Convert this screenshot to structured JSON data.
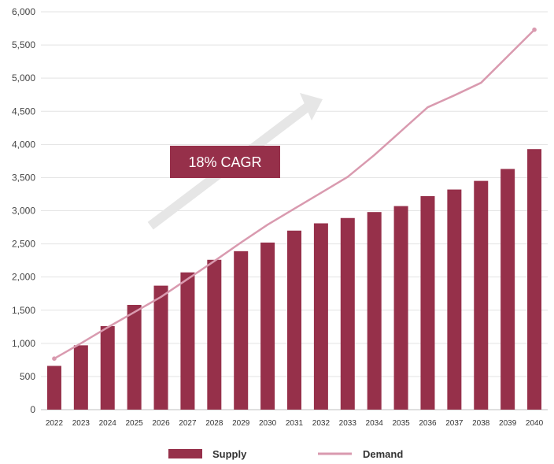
{
  "chart_data": {
    "type": "bar",
    "categories": [
      "2022",
      "2023",
      "2024",
      "2025",
      "2026",
      "2027",
      "2028",
      "2029",
      "2030",
      "2031",
      "2032",
      "2033",
      "2034",
      "2035",
      "2036",
      "2037",
      "2038",
      "2039",
      "2040"
    ],
    "series": [
      {
        "name": "Supply",
        "type": "bar",
        "color": "#96304a",
        "values": [
          660,
          970,
          1260,
          1580,
          1870,
          2070,
          2260,
          2390,
          2520,
          2700,
          2810,
          2890,
          2980,
          3070,
          3220,
          3320,
          3450,
          3630,
          3930
        ]
      },
      {
        "name": "Demand",
        "type": "line",
        "color": "#d99aaf",
        "values": [
          770,
          1000,
          1240,
          1470,
          1700,
          1970,
          2240,
          2520,
          2790,
          3030,
          3270,
          3510,
          3840,
          4200,
          4560,
          4740,
          4930,
          5330,
          5730
        ]
      }
    ],
    "yticks": [
      "0",
      "500",
      "1,000",
      "1,500",
      "2,000",
      "2,500",
      "3,000",
      "3,500",
      "4,000",
      "4,500",
      "5,000",
      "5,500",
      "6,000"
    ],
    "ylim": [
      0,
      6000
    ],
    "grid": true,
    "legend_position": "bottom",
    "annotation": {
      "text": "18% CAGR",
      "color": "#96304a"
    },
    "title": "",
    "xlabel": "",
    "ylabel": ""
  }
}
